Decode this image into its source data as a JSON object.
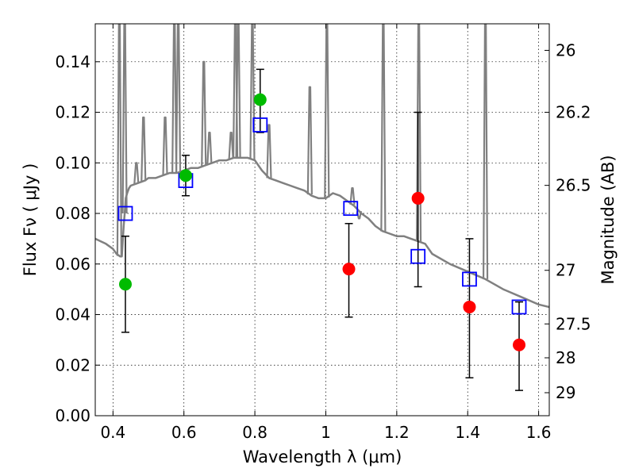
{
  "chart_data": {
    "type": "scatter",
    "title": "",
    "xlabel": "Wavelength  λ (μm)",
    "ylabel": "Flux  Fν  ( μJy )",
    "y2label": "Magnitude (AB)",
    "xlim": [
      0.35,
      1.63
    ],
    "ylim": [
      0.0,
      0.155
    ],
    "grid": true,
    "x_ticks": [
      0.4,
      0.6,
      0.8,
      1.0,
      1.2,
      1.4,
      1.6
    ],
    "x_tick_labels": [
      "0.4",
      "0.6",
      "0.8",
      "1",
      "1.2",
      "1.4",
      "1.6"
    ],
    "y_ticks": [
      0.0,
      0.02,
      0.04,
      0.06,
      0.08,
      0.1,
      0.12,
      0.14
    ],
    "y_tick_labels": [
      "0.00",
      "0.02",
      "0.04",
      "0.06",
      "0.08",
      "0.10",
      "0.12",
      "0.14"
    ],
    "y2_ticks": [
      {
        "label": "26",
        "flux": 0.1445
      },
      {
        "label": "26.2",
        "flux": 0.12
      },
      {
        "label": "26.5",
        "flux": 0.0911
      },
      {
        "label": "27",
        "flux": 0.0575
      },
      {
        "label": "27.5",
        "flux": 0.0363
      },
      {
        "label": "28",
        "flux": 0.0229
      },
      {
        "label": "29",
        "flux": 0.0091
      }
    ],
    "series": [
      {
        "kind": "model-spectrum",
        "color": "#808080",
        "x": [
          0.35,
          0.38,
          0.4,
          0.41,
          0.42,
          0.425,
          0.43,
          0.433,
          0.436,
          0.44,
          0.445,
          0.45,
          0.47,
          0.49,
          0.5,
          0.52,
          0.54,
          0.56,
          0.58,
          0.6,
          0.62,
          0.64,
          0.66,
          0.68,
          0.7,
          0.72,
          0.74,
          0.76,
          0.78,
          0.8,
          0.82,
          0.84,
          0.86,
          0.88,
          0.9,
          0.92,
          0.94,
          0.96,
          0.98,
          1.0,
          1.02,
          1.04,
          1.06,
          1.08,
          1.1,
          1.12,
          1.14,
          1.16,
          1.18,
          1.2,
          1.22,
          1.24,
          1.26,
          1.28,
          1.3,
          1.35,
          1.4,
          1.45,
          1.5,
          1.55,
          1.6,
          1.63
        ],
        "y": [
          0.07,
          0.068,
          0.066,
          0.064,
          0.063,
          0.063,
          0.075,
          0.08,
          0.086,
          0.088,
          0.09,
          0.091,
          0.092,
          0.093,
          0.094,
          0.094,
          0.095,
          0.096,
          0.096,
          0.097,
          0.098,
          0.098,
          0.099,
          0.1,
          0.101,
          0.101,
          0.102,
          0.102,
          0.102,
          0.101,
          0.097,
          0.094,
          0.093,
          0.092,
          0.091,
          0.09,
          0.089,
          0.087,
          0.086,
          0.086,
          0.088,
          0.087,
          0.085,
          0.083,
          0.08,
          0.078,
          0.075,
          0.073,
          0.072,
          0.071,
          0.071,
          0.07,
          0.069,
          0.068,
          0.064,
          0.06,
          0.057,
          0.054,
          0.05,
          0.047,
          0.044,
          0.043
        ],
        "emission_lines": [
          {
            "x": 0.418,
            "peak": 0.155
          },
          {
            "x": 0.433,
            "peak": 0.155
          },
          {
            "x": 0.466,
            "peak": 0.1
          },
          {
            "x": 0.486,
            "peak": 0.118
          },
          {
            "x": 0.547,
            "peak": 0.118
          },
          {
            "x": 0.573,
            "peak": 0.155
          },
          {
            "x": 0.584,
            "peak": 0.155
          },
          {
            "x": 0.656,
            "peak": 0.14
          },
          {
            "x": 0.672,
            "peak": 0.112
          },
          {
            "x": 0.733,
            "peak": 0.112
          },
          {
            "x": 0.745,
            "peak": 0.155
          },
          {
            "x": 0.753,
            "peak": 0.155
          },
          {
            "x": 0.793,
            "peak": 0.155
          },
          {
            "x": 0.84,
            "peak": 0.115
          },
          {
            "x": 0.955,
            "peak": 0.13
          },
          {
            "x": 1.003,
            "peak": 0.155
          },
          {
            "x": 1.075,
            "peak": 0.09
          },
          {
            "x": 1.094,
            "peak": 0.078
          },
          {
            "x": 1.162,
            "peak": 0.155
          },
          {
            "x": 1.262,
            "peak": 0.155
          },
          {
            "x": 1.45,
            "peak": 0.155
          }
        ]
      },
      {
        "kind": "model-photometry",
        "marker": "open-square",
        "color": "#0000ff",
        "x": [
          0.435,
          0.605,
          0.815,
          1.07,
          1.26,
          1.405,
          1.545
        ],
        "y": [
          0.08,
          0.093,
          0.115,
          0.082,
          0.063,
          0.054,
          0.043
        ]
      },
      {
        "kind": "observed-detections",
        "marker": "filled-circle",
        "color": "#00bb00",
        "x": [
          0.435,
          0.605,
          0.815
        ],
        "y": [
          0.052,
          0.095,
          0.125
        ],
        "yerr_lo": [
          0.033,
          0.087,
          0.112
        ],
        "yerr_hi": [
          0.071,
          0.103,
          0.137
        ]
      },
      {
        "kind": "observed-upper",
        "marker": "filled-circle",
        "color": "#ff0000",
        "x": [
          1.065,
          1.26,
          1.405,
          1.545
        ],
        "y": [
          0.058,
          0.086,
          0.043,
          0.028
        ],
        "yerr_lo": [
          0.039,
          0.051,
          0.015,
          0.01
        ],
        "yerr_hi": [
          0.076,
          0.12,
          0.07,
          0.045
        ]
      }
    ]
  }
}
